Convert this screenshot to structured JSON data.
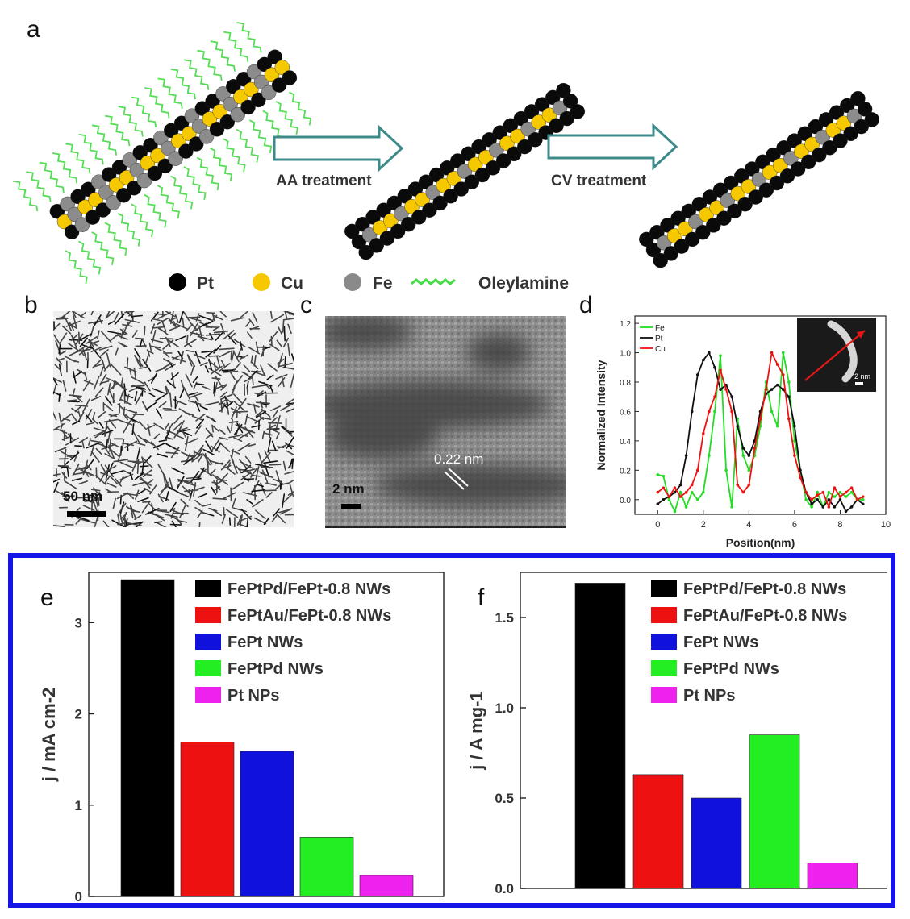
{
  "panels": {
    "a": "a",
    "b": "b",
    "c": "c",
    "d": "d",
    "e": "e",
    "f": "f"
  },
  "schematic": {
    "step1": "AA treatment",
    "step2": "CV treatment",
    "legend": [
      {
        "label": "Pt",
        "color": "#000000"
      },
      {
        "label": "Cu",
        "color": "#f5c800"
      },
      {
        "label": "Fe",
        "color": "#8a8a8a"
      },
      {
        "label": "Oleylamine",
        "color": "#44dd44"
      }
    ]
  },
  "tem_b": {
    "scale": "50 nm"
  },
  "tem_c": {
    "scale": "2 nm",
    "spacing": "0.22 nm"
  },
  "colors": {
    "black": "#000000",
    "red": "#ee1111",
    "blue": "#1111dd",
    "green": "#22ee22",
    "magenta": "#ee22ee",
    "frame": "#1515e6"
  },
  "chart_data": [
    {
      "panel": "d",
      "type": "line",
      "xlabel": "Position(nm)",
      "ylabel": "Normalized Intensity",
      "xlim": [
        -1,
        10
      ],
      "ylim": [
        -0.1,
        1.25
      ],
      "xticks": [
        0,
        2,
        4,
        6,
        8,
        10
      ],
      "yticks": [
        0.0,
        0.2,
        0.4,
        0.6,
        0.8,
        1.0,
        1.2
      ],
      "legend_position": "top-left",
      "inset_scale": "2 nm",
      "series": [
        {
          "name": "Fe",
          "color": "#22dd22",
          "x": [
            0,
            0.25,
            0.5,
            0.75,
            1,
            1.25,
            1.5,
            1.75,
            2,
            2.25,
            2.5,
            2.75,
            3,
            3.25,
            3.5,
            3.75,
            4,
            4.25,
            4.5,
            4.75,
            5,
            5.25,
            5.5,
            5.75,
            6,
            6.25,
            6.5,
            6.75,
            7,
            7.25,
            7.5,
            7.75,
            8,
            8.25,
            8.5,
            8.75,
            9
          ],
          "y": [
            0.17,
            0.16,
            0.0,
            -0.08,
            0.05,
            -0.05,
            0.05,
            0.0,
            0.05,
            0.3,
            0.6,
            0.98,
            0.2,
            -0.05,
            0.55,
            0.3,
            0.2,
            0.3,
            0.5,
            0.8,
            0.6,
            0.5,
            1.0,
            0.8,
            0.4,
            0.2,
            0.0,
            -0.05,
            0.05,
            -0.05,
            0.05,
            0.02,
            0.05,
            0.02,
            0.05,
            0.0,
            0.0
          ]
        },
        {
          "name": "Pt",
          "color": "#111111",
          "x": [
            0,
            0.25,
            0.5,
            0.75,
            1,
            1.25,
            1.5,
            1.75,
            2,
            2.25,
            2.5,
            2.75,
            3,
            3.25,
            3.5,
            3.75,
            4,
            4.25,
            4.5,
            4.75,
            5,
            5.25,
            5.5,
            5.75,
            6,
            6.25,
            6.5,
            6.75,
            7,
            7.25,
            7.5,
            7.75,
            8,
            8.25,
            8.5,
            8.75,
            9
          ],
          "y": [
            -0.03,
            0.0,
            0.02,
            0.05,
            0.1,
            0.3,
            0.6,
            0.85,
            0.95,
            1.0,
            0.9,
            0.75,
            0.78,
            0.7,
            0.5,
            0.35,
            0.3,
            0.4,
            0.6,
            0.72,
            0.75,
            0.78,
            0.75,
            0.7,
            0.5,
            0.2,
            0.05,
            -0.03,
            0.0,
            -0.05,
            0.0,
            -0.05,
            0.0,
            -0.08,
            -0.05,
            0.0,
            -0.03
          ]
        },
        {
          "name": "Cu",
          "color": "#ee1111",
          "x": [
            0,
            0.25,
            0.5,
            0.75,
            1,
            1.25,
            1.5,
            1.75,
            2,
            2.25,
            2.5,
            2.75,
            3,
            3.25,
            3.5,
            3.75,
            4,
            4.25,
            4.5,
            4.75,
            5,
            5.25,
            5.5,
            5.75,
            6,
            6.25,
            6.5,
            6.75,
            7,
            7.25,
            7.5,
            7.75,
            8,
            8.25,
            8.5,
            8.75,
            9
          ],
          "y": [
            0.05,
            0.08,
            0.02,
            0.08,
            0.02,
            0.05,
            0.1,
            0.2,
            0.45,
            0.6,
            0.7,
            0.88,
            0.75,
            0.6,
            0.1,
            0.05,
            0.1,
            0.35,
            0.55,
            0.75,
            1.0,
            0.92,
            0.85,
            0.55,
            0.3,
            0.15,
            0.05,
            0.0,
            0.03,
            0.05,
            -0.05,
            0.08,
            0.02,
            0.05,
            0.08,
            0.0,
            0.02
          ]
        }
      ]
    },
    {
      "panel": "e",
      "type": "bar",
      "ylabel": "j / mA cm-2",
      "ylim": [
        0,
        3.55
      ],
      "yticks": [
        0,
        1,
        2,
        3
      ],
      "legend_position": "top-right",
      "categories": [
        "FePtPd/FePt-0.8 NWs",
        "FePtAu/FePt-0.8 NWs",
        "FePt NWs",
        "FePtPd NWs",
        "Pt NPs"
      ],
      "values": [
        3.47,
        1.69,
        1.59,
        0.65,
        0.23
      ],
      "colors": [
        "#000000",
        "#ee1111",
        "#1111dd",
        "#22ee22",
        "#ee22ee"
      ]
    },
    {
      "panel": "f",
      "type": "bar",
      "ylabel": "j / A mg-1",
      "ylim": [
        0,
        1.75
      ],
      "yticks": [
        0.0,
        0.5,
        1.0,
        1.5
      ],
      "legend_position": "top-right",
      "categories": [
        "FePtPd/FePt-0.8 NWs",
        "FePtAu/FePt-0.8 NWs",
        "FePt NWs",
        "FePtPd NWs",
        "Pt NPs"
      ],
      "values": [
        1.69,
        0.63,
        0.5,
        0.85,
        0.14
      ],
      "colors": [
        "#000000",
        "#ee1111",
        "#1111dd",
        "#22ee22",
        "#ee22ee"
      ]
    }
  ]
}
